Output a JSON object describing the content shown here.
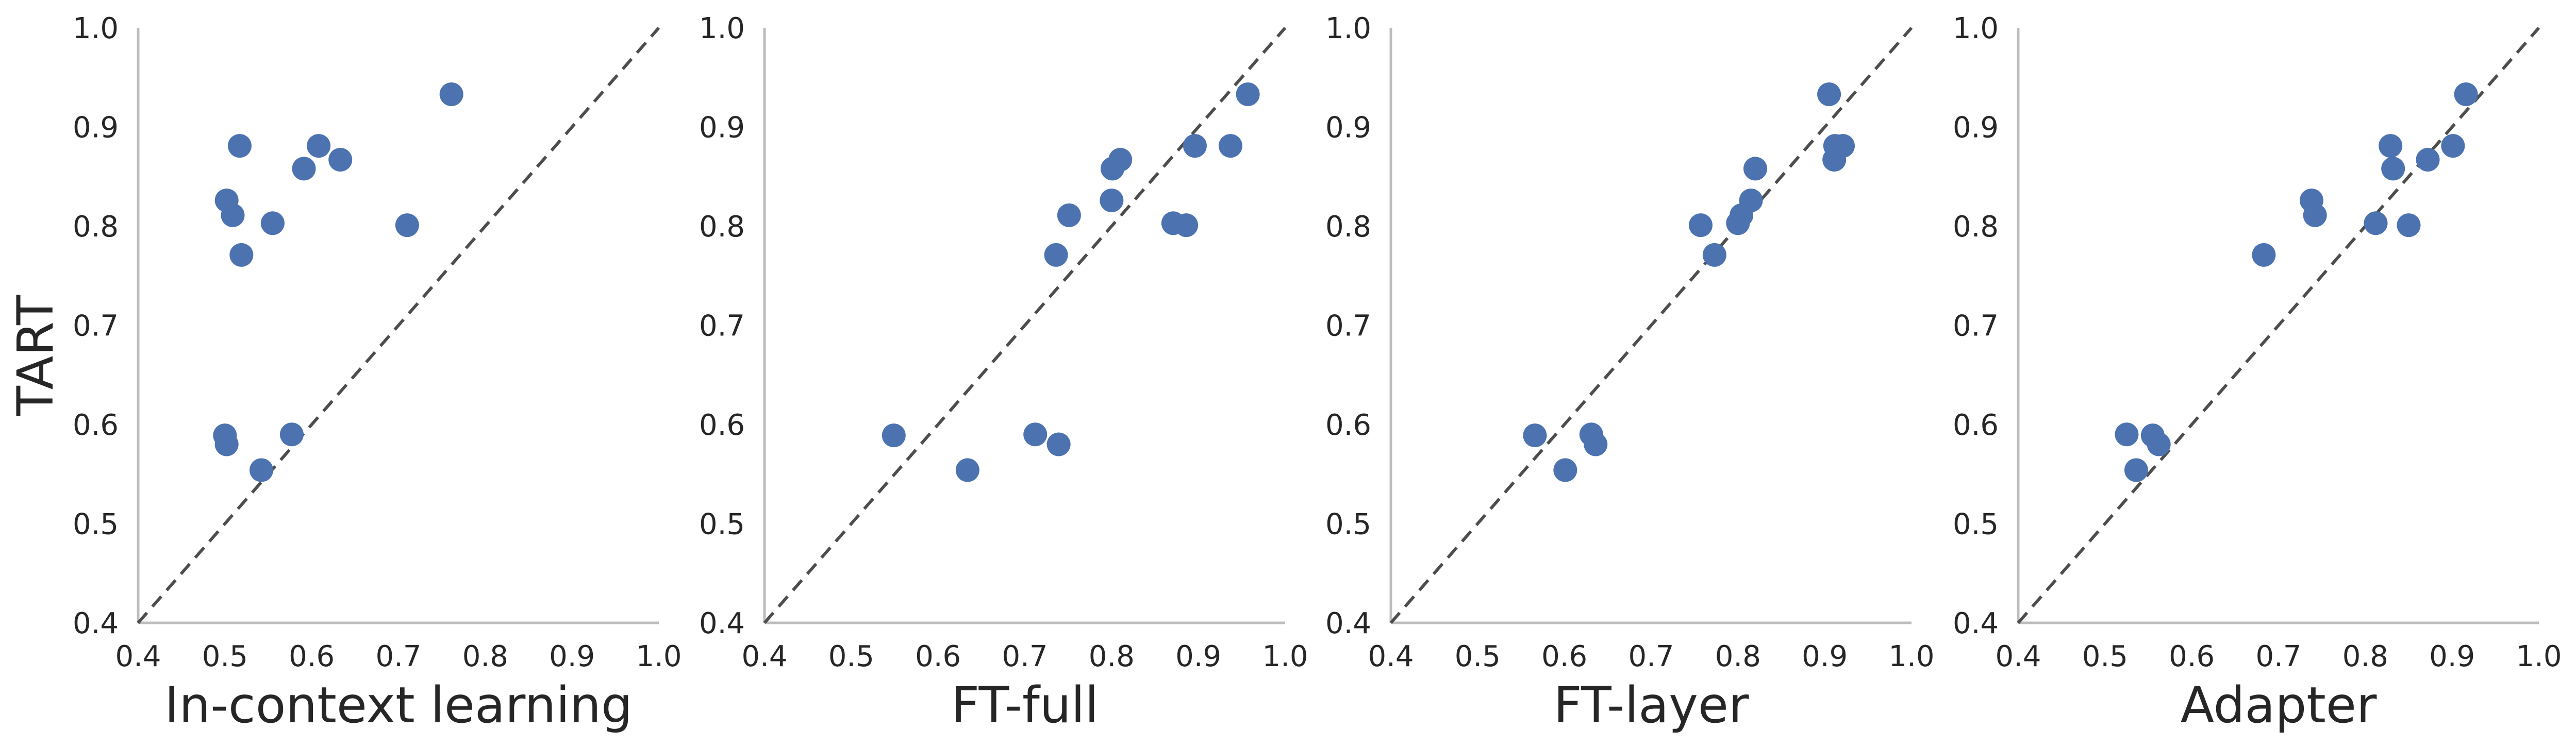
{
  "figure": {
    "ylabel": "TART"
  },
  "colors": {
    "marker": "#4c72b0",
    "axis": "#bdbdbd",
    "diagonal": "#4d4d4d",
    "text": "#262626"
  },
  "chart_data": [
    {
      "type": "scatter",
      "xlabel": "In-context learning",
      "ylabel": "TART",
      "xlim": [
        0.4,
        1.0
      ],
      "ylim": [
        0.4,
        1.0
      ],
      "xticks": [
        "0.4",
        "0.5",
        "0.6",
        "0.7",
        "0.8",
        "0.9",
        "1.0"
      ],
      "yticks": [
        "0.4",
        "0.5",
        "0.6",
        "0.7",
        "0.8",
        "0.9",
        "1.0"
      ],
      "reference_line": "y = x (dashed)",
      "grid": false,
      "points": [
        {
          "x": 0.517,
          "y": 0.881
        },
        {
          "x": 0.502,
          "y": 0.826
        },
        {
          "x": 0.509,
          "y": 0.811
        },
        {
          "x": 0.519,
          "y": 0.771
        },
        {
          "x": 0.555,
          "y": 0.803
        },
        {
          "x": 0.591,
          "y": 0.858
        },
        {
          "x": 0.608,
          "y": 0.881
        },
        {
          "x": 0.633,
          "y": 0.867
        },
        {
          "x": 0.71,
          "y": 0.801
        },
        {
          "x": 0.761,
          "y": 0.933
        },
        {
          "x": 0.5,
          "y": 0.589
        },
        {
          "x": 0.502,
          "y": 0.58
        },
        {
          "x": 0.577,
          "y": 0.59
        },
        {
          "x": 0.542,
          "y": 0.554
        }
      ]
    },
    {
      "type": "scatter",
      "xlabel": "FT-full",
      "ylabel": "",
      "xlim": [
        0.4,
        1.0
      ],
      "ylim": [
        0.4,
        1.0
      ],
      "xticks": [
        "0.4",
        "0.5",
        "0.6",
        "0.7",
        "0.8",
        "0.9",
        "1.0"
      ],
      "yticks": [
        "0.4",
        "0.5",
        "0.6",
        "0.7",
        "0.8",
        "0.9",
        "1.0"
      ],
      "reference_line": "y = x (dashed)",
      "grid": false,
      "points": [
        {
          "x": 0.549,
          "y": 0.589
        },
        {
          "x": 0.634,
          "y": 0.554
        },
        {
          "x": 0.712,
          "y": 0.59
        },
        {
          "x": 0.739,
          "y": 0.58
        },
        {
          "x": 0.736,
          "y": 0.771
        },
        {
          "x": 0.751,
          "y": 0.811
        },
        {
          "x": 0.8,
          "y": 0.826
        },
        {
          "x": 0.801,
          "y": 0.858
        },
        {
          "x": 0.81,
          "y": 0.867
        },
        {
          "x": 0.871,
          "y": 0.803
        },
        {
          "x": 0.886,
          "y": 0.801
        },
        {
          "x": 0.896,
          "y": 0.881
        },
        {
          "x": 0.937,
          "y": 0.881
        },
        {
          "x": 0.957,
          "y": 0.933
        }
      ]
    },
    {
      "type": "scatter",
      "xlabel": "FT-layer",
      "ylabel": "",
      "xlim": [
        0.4,
        1.0
      ],
      "ylim": [
        0.4,
        1.0
      ],
      "xticks": [
        "0.4",
        "0.5",
        "0.6",
        "0.7",
        "0.8",
        "0.9",
        "1.0"
      ],
      "yticks": [
        "0.4",
        "0.5",
        "0.6",
        "0.7",
        "0.8",
        "0.9",
        "1.0"
      ],
      "reference_line": "y = x (dashed)",
      "grid": false,
      "points": [
        {
          "x": 0.566,
          "y": 0.589
        },
        {
          "x": 0.601,
          "y": 0.554
        },
        {
          "x": 0.631,
          "y": 0.59
        },
        {
          "x": 0.636,
          "y": 0.58
        },
        {
          "x": 0.757,
          "y": 0.801
        },
        {
          "x": 0.773,
          "y": 0.771
        },
        {
          "x": 0.8,
          "y": 0.803
        },
        {
          "x": 0.804,
          "y": 0.811
        },
        {
          "x": 0.815,
          "y": 0.826
        },
        {
          "x": 0.82,
          "y": 0.858
        },
        {
          "x": 0.905,
          "y": 0.933
        },
        {
          "x": 0.911,
          "y": 0.867
        },
        {
          "x": 0.912,
          "y": 0.881
        },
        {
          "x": 0.921,
          "y": 0.881
        }
      ]
    },
    {
      "type": "scatter",
      "xlabel": "Adapter",
      "ylabel": "",
      "xlim": [
        0.4,
        1.0
      ],
      "ylim": [
        0.4,
        1.0
      ],
      "xticks": [
        "0.4",
        "0.5",
        "0.6",
        "0.7",
        "0.8",
        "0.9",
        "1.0"
      ],
      "yticks": [
        "0.4",
        "0.5",
        "0.6",
        "0.7",
        "0.8",
        "0.9",
        "1.0"
      ],
      "reference_line": "y = x (dashed)",
      "grid": false,
      "points": [
        {
          "x": 0.525,
          "y": 0.59
        },
        {
          "x": 0.536,
          "y": 0.554
        },
        {
          "x": 0.555,
          "y": 0.589
        },
        {
          "x": 0.562,
          "y": 0.58
        },
        {
          "x": 0.683,
          "y": 0.771
        },
        {
          "x": 0.738,
          "y": 0.826
        },
        {
          "x": 0.742,
          "y": 0.811
        },
        {
          "x": 0.812,
          "y": 0.803
        },
        {
          "x": 0.829,
          "y": 0.881
        },
        {
          "x": 0.832,
          "y": 0.858
        },
        {
          "x": 0.85,
          "y": 0.801
        },
        {
          "x": 0.872,
          "y": 0.867
        },
        {
          "x": 0.901,
          "y": 0.881
        },
        {
          "x": 0.916,
          "y": 0.933
        }
      ]
    }
  ]
}
